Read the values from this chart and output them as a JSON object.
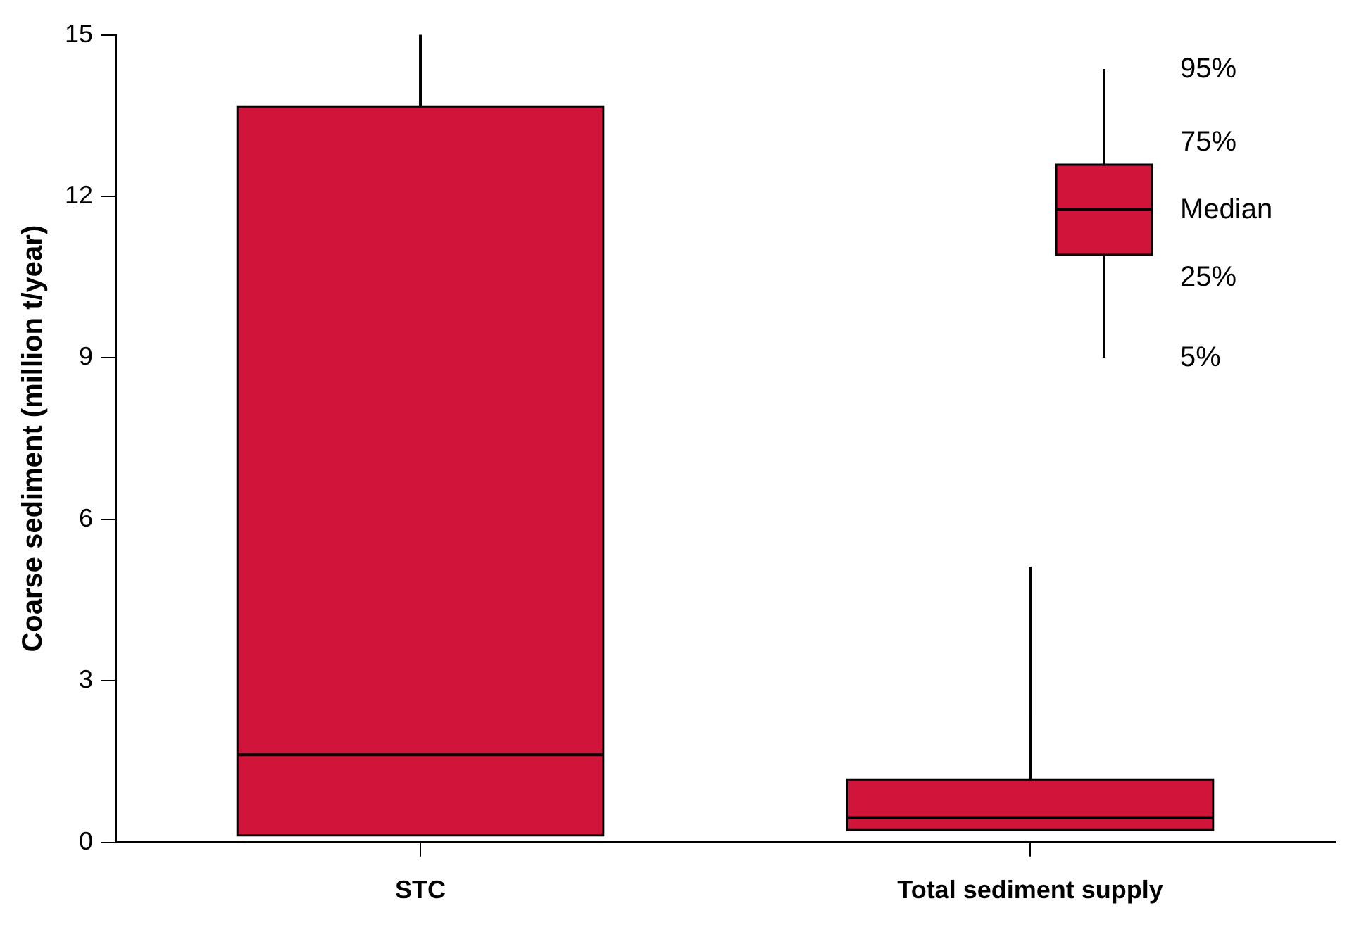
{
  "chart_data": {
    "type": "box",
    "ylabel": "Coarse sediment (million t/year)",
    "categories": [
      "STC",
      "Total sediment supply"
    ],
    "series": [
      {
        "color": "#d0143a",
        "boxes": [
          {
            "low": 0.13,
            "q1": 0.13,
            "median": 1.63,
            "q3": 13.67,
            "high": 15
          },
          {
            "low": 0.23,
            "q1": 0.23,
            "median": 0.46,
            "q3": 1.17,
            "high": 5.12
          }
        ]
      }
    ],
    "ylim": [
      0,
      15
    ],
    "yticks": [
      0,
      3,
      6,
      9,
      12,
      15
    ],
    "grid": false,
    "annotations": [
      "95%",
      "75%",
      "Median",
      "25%",
      "5%"
    ]
  }
}
